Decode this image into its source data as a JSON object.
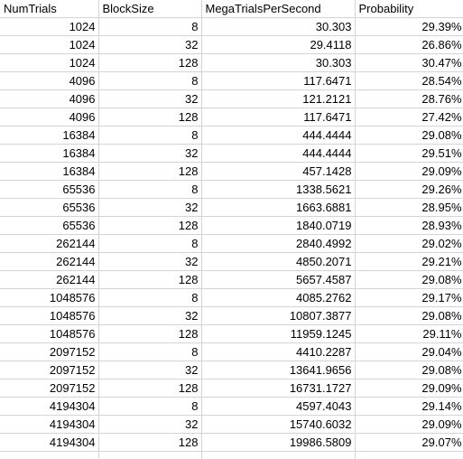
{
  "sheet": {
    "headers": [
      "NumTrials",
      "BlockSize",
      "MegaTrialsPerSecond",
      "Probability"
    ],
    "rows": [
      [
        "1024",
        "8",
        "30.303",
        "29.39%"
      ],
      [
        "1024",
        "32",
        "29.4118",
        "26.86%"
      ],
      [
        "1024",
        "128",
        "30.303",
        "30.47%"
      ],
      [
        "4096",
        "8",
        "117.6471",
        "28.54%"
      ],
      [
        "4096",
        "32",
        "121.2121",
        "28.76%"
      ],
      [
        "4096",
        "128",
        "117.6471",
        "27.42%"
      ],
      [
        "16384",
        "8",
        "444.4444",
        "29.08%"
      ],
      [
        "16384",
        "32",
        "444.4444",
        "29.51%"
      ],
      [
        "16384",
        "128",
        "457.1428",
        "29.09%"
      ],
      [
        "65536",
        "8",
        "1338.5621",
        "29.26%"
      ],
      [
        "65536",
        "32",
        "1663.6881",
        "28.95%"
      ],
      [
        "65536",
        "128",
        "1840.0719",
        "28.93%"
      ],
      [
        "262144",
        "8",
        "2840.4992",
        "29.02%"
      ],
      [
        "262144",
        "32",
        "4850.2071",
        "29.21%"
      ],
      [
        "262144",
        "128",
        "5657.4587",
        "29.08%"
      ],
      [
        "1048576",
        "8",
        "4085.2762",
        "29.17%"
      ],
      [
        "1048576",
        "32",
        "10807.3877",
        "29.08%"
      ],
      [
        "1048576",
        "128",
        "11959.1245",
        "29.11%"
      ],
      [
        "2097152",
        "8",
        "4410.2287",
        "29.04%"
      ],
      [
        "2097152",
        "32",
        "13641.9656",
        "29.08%"
      ],
      [
        "2097152",
        "128",
        "16731.1727",
        "29.09%"
      ],
      [
        "4194304",
        "8",
        "4597.4043",
        "29.14%"
      ],
      [
        "4194304",
        "32",
        "15740.6032",
        "29.09%"
      ],
      [
        "4194304",
        "128",
        "19986.5809",
        "29.07%"
      ]
    ]
  }
}
